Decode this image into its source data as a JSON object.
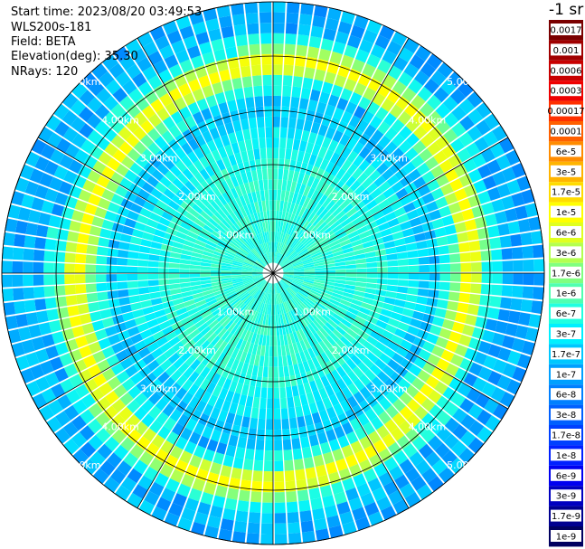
{
  "info": {
    "start_time": "Start time: 2023/08/20 03:49:53",
    "device": "WLS200s-181",
    "field": "Field: BETA",
    "elevation": "Elevation(deg): 35.30",
    "nrays": "NRays: 120"
  },
  "chart_data": {
    "type": "heatmap",
    "projection": "polar-ppi",
    "field": "BETA",
    "elevation_deg": 35.3,
    "nrays": 120,
    "range_rings_km": [
      1,
      2,
      3,
      4,
      5
    ],
    "range_ring_labels": [
      "1.00km",
      "2.00km",
      "3.00km",
      "4.00km",
      "5.00km"
    ],
    "max_range_km": 5.0,
    "feature_ring_km": 3.75,
    "colorbar": {
      "title": "-1 sr",
      "scale": "log",
      "levels": [
        {
          "label": "0.0017",
          "color": "#7a0000"
        },
        {
          "label": "0.001",
          "color": "#a00000"
        },
        {
          "label": "0.0006",
          "color": "#c80000"
        },
        {
          "label": "0.0003",
          "color": "#ee0000"
        },
        {
          "label": "0.00017",
          "color": "#ff3000"
        },
        {
          "label": "0.0001",
          "color": "#ff6000"
        },
        {
          "label": "6e-5",
          "color": "#ff8c00"
        },
        {
          "label": "3e-5",
          "color": "#ffb400"
        },
        {
          "label": "1.7e-5",
          "color": "#ffdc00"
        },
        {
          "label": "1e-5",
          "color": "#ffff00"
        },
        {
          "label": "6e-6",
          "color": "#e0ff20"
        },
        {
          "label": "3e-6",
          "color": "#b4ff50"
        },
        {
          "label": "1.7e-6",
          "color": "#80ff80"
        },
        {
          "label": "1e-6",
          "color": "#50ffb0"
        },
        {
          "label": "6e-7",
          "color": "#20ffe0"
        },
        {
          "label": "3e-7",
          "color": "#00f0ff"
        },
        {
          "label": "1.7e-7",
          "color": "#00c8ff"
        },
        {
          "label": "1e-7",
          "color": "#00a0ff"
        },
        {
          "label": "6e-8",
          "color": "#0080ff"
        },
        {
          "label": "3e-8",
          "color": "#0060ff"
        },
        {
          "label": "1.7e-8",
          "color": "#0040ff"
        },
        {
          "label": "1e-8",
          "color": "#0020ff"
        },
        {
          "label": "6e-9",
          "color": "#0000f0"
        },
        {
          "label": "3e-9",
          "color": "#0000c0"
        },
        {
          "label": "1.7e-9",
          "color": "#000090"
        },
        {
          "label": "1e-9",
          "color": "#000060"
        }
      ]
    }
  }
}
